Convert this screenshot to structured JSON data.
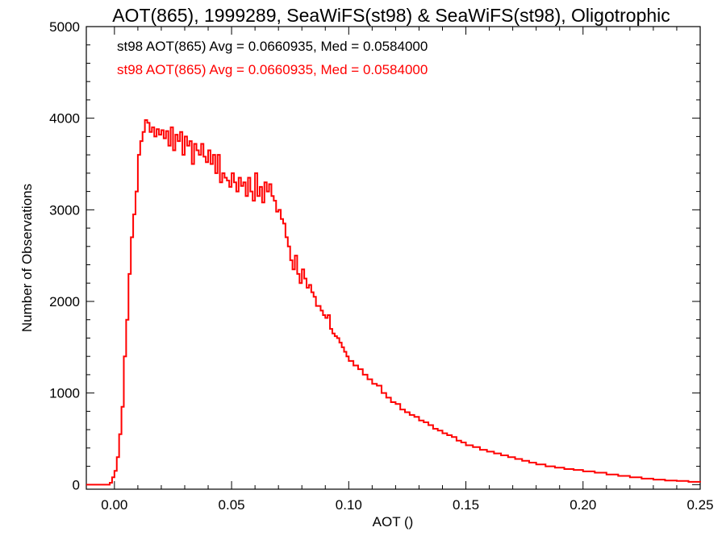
{
  "chart_data": {
    "type": "histogram-step",
    "title": "AOT(865), 1999289, SeaWiFS(st98) & SeaWiFS(st98), Oligotrophic",
    "xlabel": "AOT ()",
    "ylabel": "Number of Observations",
    "xlim": [
      -0.012,
      0.25
    ],
    "ylim": [
      -50,
      5000
    ],
    "xticks": [
      "0.00",
      "0.05",
      "0.10",
      "0.15",
      "0.20",
      "0.25"
    ],
    "xtick_values": [
      0.0,
      0.05,
      0.1,
      0.15,
      0.2,
      0.25
    ],
    "yticks": [
      "0",
      "1000",
      "2000",
      "3000",
      "4000",
      "5000"
    ],
    "ytick_values": [
      0,
      1000,
      2000,
      3000,
      4000,
      5000
    ],
    "grid": false,
    "legend": [
      {
        "text": "st98 AOT(865) Avg = 0.0660935, Med = 0.0584000",
        "color": "#000000"
      },
      {
        "text": "st98 AOT(865) Avg = 0.0660935, Med = 0.0584000",
        "color": "#ff0000"
      }
    ],
    "legend_position": "top-left",
    "series": [
      {
        "color": "#ff0000",
        "bin_width": 0.001,
        "x": [
          -0.012,
          -0.002,
          -0.001,
          0.0,
          0.001,
          0.002,
          0.003,
          0.004,
          0.005,
          0.006,
          0.007,
          0.008,
          0.009,
          0.01,
          0.011,
          0.012,
          0.013,
          0.014,
          0.015,
          0.016,
          0.017,
          0.018,
          0.019,
          0.02,
          0.021,
          0.022,
          0.023,
          0.024,
          0.025,
          0.026,
          0.027,
          0.028,
          0.029,
          0.03,
          0.031,
          0.032,
          0.033,
          0.034,
          0.035,
          0.036,
          0.037,
          0.038,
          0.039,
          0.04,
          0.041,
          0.042,
          0.043,
          0.044,
          0.045,
          0.046,
          0.047,
          0.048,
          0.049,
          0.05,
          0.051,
          0.052,
          0.053,
          0.054,
          0.055,
          0.056,
          0.057,
          0.058,
          0.059,
          0.06,
          0.061,
          0.062,
          0.063,
          0.064,
          0.065,
          0.066,
          0.067,
          0.068,
          0.069,
          0.07,
          0.071,
          0.072,
          0.073,
          0.074,
          0.075,
          0.076,
          0.077,
          0.078,
          0.079,
          0.08,
          0.081,
          0.082,
          0.083,
          0.084,
          0.085,
          0.086,
          0.087,
          0.088,
          0.089,
          0.09,
          0.091,
          0.092,
          0.093,
          0.094,
          0.095,
          0.096,
          0.097,
          0.098,
          0.099,
          0.1,
          0.102,
          0.104,
          0.106,
          0.108,
          0.11,
          0.112,
          0.114,
          0.116,
          0.118,
          0.12,
          0.122,
          0.124,
          0.126,
          0.128,
          0.13,
          0.132,
          0.134,
          0.136,
          0.138,
          0.14,
          0.142,
          0.144,
          0.146,
          0.148,
          0.15,
          0.153,
          0.156,
          0.159,
          0.162,
          0.165,
          0.168,
          0.171,
          0.174,
          0.177,
          0.18,
          0.184,
          0.188,
          0.192,
          0.196,
          0.2,
          0.205,
          0.21,
          0.215,
          0.22,
          0.225,
          0.23,
          0.235,
          0.24,
          0.245,
          0.25
        ],
        "y": [
          0,
          20,
          80,
          150,
          300,
          550,
          850,
          1400,
          1800,
          2300,
          2700,
          2950,
          3200,
          3600,
          3750,
          3850,
          3980,
          3950,
          3850,
          3900,
          3800,
          3880,
          3820,
          3870,
          3780,
          3860,
          3700,
          3900,
          3650,
          3820,
          3750,
          3850,
          3600,
          3800,
          3700,
          3750,
          3500,
          3720,
          3650,
          3600,
          3720,
          3580,
          3520,
          3650,
          3500,
          3600,
          3400,
          3600,
          3300,
          3400,
          3350,
          3320,
          3250,
          3400,
          3300,
          3200,
          3350,
          3260,
          3300,
          3150,
          3350,
          3200,
          3100,
          3400,
          3150,
          3250,
          3080,
          3300,
          3200,
          3280,
          3150,
          3100,
          2980,
          3000,
          2900,
          2850,
          2700,
          2600,
          2450,
          2350,
          2500,
          2300,
          2200,
          2350,
          2250,
          2150,
          2180,
          2100,
          2050,
          1950,
          1950,
          1900,
          1850,
          1820,
          1850,
          1700,
          1650,
          1620,
          1600,
          1550,
          1500,
          1450,
          1400,
          1350,
          1300,
          1260,
          1200,
          1150,
          1100,
          1080,
          1000,
          950,
          900,
          880,
          820,
          790,
          760,
          740,
          700,
          680,
          650,
          610,
          590,
          560,
          540,
          520,
          480,
          460,
          430,
          410,
          380,
          360,
          340,
          320,
          300,
          280,
          260,
          240,
          220,
          200,
          185,
          170,
          160,
          145,
          130,
          110,
          95,
          80,
          65,
          55,
          45,
          40,
          30,
          25
        ]
      }
    ]
  }
}
